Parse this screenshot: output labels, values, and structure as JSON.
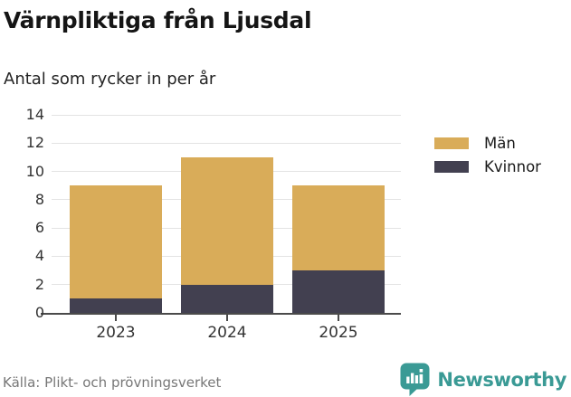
{
  "header": {
    "title": "Värnpliktiga från Ljusdal",
    "subtitle": "Antal som rycker in per år"
  },
  "chart_data": {
    "type": "bar",
    "stacked": true,
    "title": "Värnpliktiga från Ljusdal",
    "subtitle": "Antal som rycker in per år",
    "categories": [
      "2023",
      "2024",
      "2025"
    ],
    "series": [
      {
        "name": "Män",
        "color": "#D9AC59",
        "values": [
          8,
          9,
          6
        ]
      },
      {
        "name": "Kvinnor",
        "color": "#424050",
        "values": [
          1,
          2,
          3
        ]
      }
    ],
    "stack_totals": [
      9,
      11,
      9
    ],
    "xlabel": "",
    "ylabel": "",
    "ylim": [
      0,
      14
    ],
    "yticks": [
      0,
      2,
      4,
      6,
      8,
      10,
      12,
      14
    ],
    "grid": true,
    "legend_position": "right"
  },
  "legend": {
    "items": [
      {
        "label": "Män",
        "color": "#D9AC59"
      },
      {
        "label": "Kvinnor",
        "color": "#424050"
      }
    ]
  },
  "footer": {
    "source": "Källa: Plikt- och prövningsverket",
    "brand": "Newsworthy"
  },
  "icons": {
    "brand_icon": "newsworthy-speech-bubble-bar-chart-icon"
  },
  "colors": {
    "men": "#D9AC59",
    "women": "#424050",
    "axis": "#4A4A4A",
    "grid": "#E3E3E3",
    "tick_label": "#333333",
    "source_text": "#777777",
    "brand_teal": "#3A9A95",
    "background": "#FFFFFF"
  }
}
